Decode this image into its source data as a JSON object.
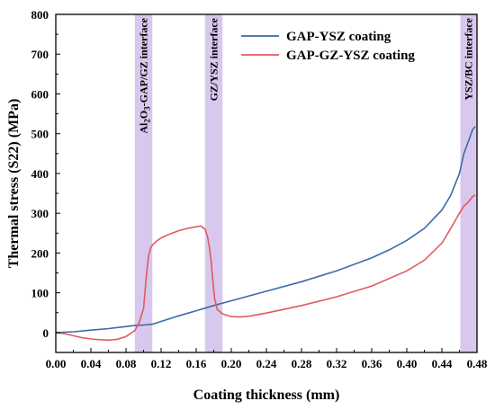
{
  "chart_data": {
    "type": "line",
    "xlabel": "Coating thickness (mm)",
    "ylabel": "Thermal stress (S22) (MPa)",
    "xlim": [
      0.0,
      0.48
    ],
    "ylim": [
      -50,
      800
    ],
    "xticks": [
      "0.00",
      "0.04",
      "0.08",
      "0.12",
      "0.16",
      "0.20",
      "0.24",
      "0.28",
      "0.32",
      "0.36",
      "0.40",
      "0.44",
      "0.48"
    ],
    "xtick_values": [
      0.0,
      0.04,
      0.08,
      0.12,
      0.16,
      0.2,
      0.24,
      0.28,
      0.32,
      0.36,
      0.4,
      0.44,
      0.48
    ],
    "yticks": [
      "0",
      "100",
      "200",
      "300",
      "400",
      "500",
      "600",
      "700",
      "800"
    ],
    "ytick_values": [
      0,
      100,
      200,
      300,
      400,
      500,
      600,
      700,
      800
    ],
    "legend_position": "top-right",
    "grid": false,
    "bands": [
      {
        "label_parts": [
          "Al",
          "2",
          "O",
          "3",
          "-GAP/GZ interface"
        ],
        "x0": 0.09,
        "x1": 0.11,
        "color": "#d8c8ee"
      },
      {
        "label_parts": [
          "GZ/YSZ interface"
        ],
        "x0": 0.17,
        "x1": 0.19,
        "color": "#d8c8ee"
      },
      {
        "label_parts": [
          "YSZ/BC interface"
        ],
        "x0": 0.461,
        "x1": 0.48,
        "color": "#d8c8ee"
      }
    ],
    "series": [
      {
        "name": "GAP-YSZ coating",
        "color": "#3a6aa8",
        "points": [
          [
            0.0,
            0
          ],
          [
            0.02,
            2
          ],
          [
            0.04,
            6
          ],
          [
            0.06,
            10
          ],
          [
            0.08,
            15
          ],
          [
            0.09,
            18
          ],
          [
            0.1,
            19
          ],
          [
            0.11,
            21
          ],
          [
            0.12,
            28
          ],
          [
            0.14,
            42
          ],
          [
            0.16,
            55
          ],
          [
            0.18,
            68
          ],
          [
            0.2,
            80
          ],
          [
            0.24,
            104
          ],
          [
            0.28,
            128
          ],
          [
            0.32,
            155
          ],
          [
            0.36,
            188
          ],
          [
            0.38,
            208
          ],
          [
            0.4,
            232
          ],
          [
            0.42,
            262
          ],
          [
            0.44,
            308
          ],
          [
            0.45,
            345
          ],
          [
            0.46,
            400
          ],
          [
            0.465,
            450
          ],
          [
            0.47,
            480
          ],
          [
            0.475,
            510
          ],
          [
            0.478,
            518
          ]
        ]
      },
      {
        "name": "GAP-GZ-YSZ coating",
        "color": "#e05a60",
        "points": [
          [
            0.0,
            0
          ],
          [
            0.01,
            -3
          ],
          [
            0.02,
            -8
          ],
          [
            0.03,
            -13
          ],
          [
            0.04,
            -16
          ],
          [
            0.05,
            -18
          ],
          [
            0.06,
            -19
          ],
          [
            0.07,
            -17
          ],
          [
            0.08,
            -10
          ],
          [
            0.09,
            5
          ],
          [
            0.095,
            25
          ],
          [
            0.1,
            60
          ],
          [
            0.102,
            110
          ],
          [
            0.104,
            160
          ],
          [
            0.106,
            195
          ],
          [
            0.108,
            212
          ],
          [
            0.11,
            220
          ],
          [
            0.115,
            230
          ],
          [
            0.12,
            238
          ],
          [
            0.13,
            248
          ],
          [
            0.14,
            256
          ],
          [
            0.15,
            262
          ],
          [
            0.16,
            266
          ],
          [
            0.165,
            268
          ],
          [
            0.17,
            260
          ],
          [
            0.173,
            240
          ],
          [
            0.175,
            215
          ],
          [
            0.177,
            180
          ],
          [
            0.179,
            130
          ],
          [
            0.181,
            85
          ],
          [
            0.184,
            58
          ],
          [
            0.19,
            47
          ],
          [
            0.2,
            40
          ],
          [
            0.21,
            39
          ],
          [
            0.22,
            41
          ],
          [
            0.24,
            49
          ],
          [
            0.28,
            68
          ],
          [
            0.32,
            90
          ],
          [
            0.36,
            117
          ],
          [
            0.4,
            155
          ],
          [
            0.42,
            182
          ],
          [
            0.44,
            225
          ],
          [
            0.45,
            262
          ],
          [
            0.46,
            300
          ],
          [
            0.465,
            318
          ],
          [
            0.47,
            328
          ],
          [
            0.475,
            342
          ],
          [
            0.478,
            346
          ]
        ]
      }
    ]
  }
}
